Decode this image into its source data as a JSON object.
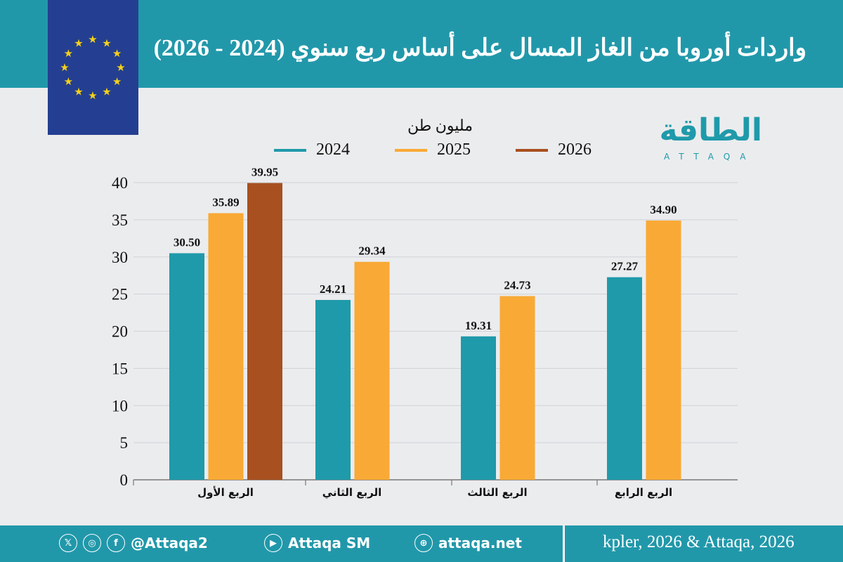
{
  "header": {
    "title": "واردات أوروبا من الغاز المسال على أساس ربع سنوي (2024 - 2026)"
  },
  "logo": {
    "arabic": "الطاقة",
    "latin": "ATTAQA"
  },
  "chart_data": {
    "type": "bar",
    "unit_label": "مليون طن",
    "categories": [
      "الربع الأول",
      "الربع الثاني",
      "الربع الثالث",
      "الربع الرابع"
    ],
    "series": [
      {
        "name": "2024",
        "color": "#1f9aaa",
        "values": [
          30.5,
          24.21,
          19.31,
          27.27
        ]
      },
      {
        "name": "2025",
        "color": "#f9a935",
        "values": [
          35.89,
          29.34,
          24.73,
          34.9
        ]
      },
      {
        "name": "2026",
        "color": "#a8501f",
        "values": [
          39.95,
          null,
          null,
          null
        ]
      }
    ],
    "ylim": [
      0,
      40
    ],
    "yticks": [
      0,
      5,
      10,
      15,
      20,
      25,
      30,
      35,
      40
    ],
    "grid": true,
    "legend_position": "top"
  },
  "footer": {
    "handle": "@Attaqa2",
    "youtube": "Attaqa SM",
    "website": "attaqa.net",
    "source": "kpler, 2026 & Attaqa, 2026",
    "icons": [
      "x-icon",
      "instagram-icon",
      "facebook-icon",
      "youtube-icon",
      "globe-icon"
    ]
  }
}
